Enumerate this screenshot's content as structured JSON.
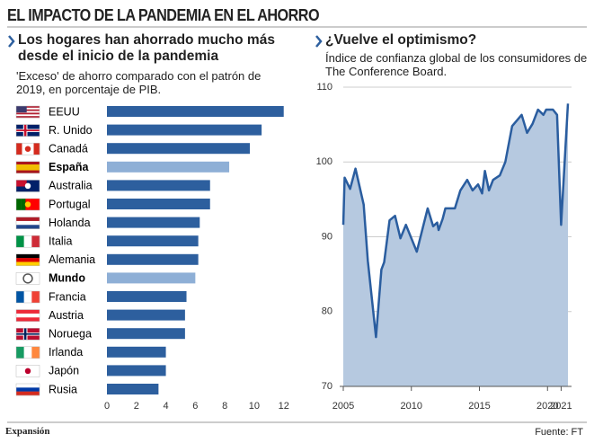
{
  "header": {
    "title": "EL IMPACTO DE LA PANDEMIA EN EL AHORRO"
  },
  "chart_data": [
    {
      "type": "bar",
      "orientation": "horizontal",
      "title": "Los hogares han ahorrado mucho más desde el inicio de la pandemia",
      "subtitle": "'Exceso' de ahorro comparado con el patrón de 2019, en porcentaje de PIB.",
      "categories": [
        "EEUU",
        "R. Unido",
        "Canadá",
        "España",
        "Australia",
        "Portugal",
        "Holanda",
        "Italia",
        "Alemania",
        "Mundo",
        "Francia",
        "Austria",
        "Noruega",
        "Irlanda",
        "Japón",
        "Rusia"
      ],
      "values": [
        12.0,
        10.5,
        9.7,
        8.3,
        7.0,
        7.0,
        6.3,
        6.2,
        6.2,
        6.0,
        5.4,
        5.3,
        5.3,
        4.0,
        4.0,
        3.5
      ],
      "color": "#2d5f9e",
      "highlight": [
        "España",
        "Mundo"
      ],
      "highlight_color": "#8eafd6",
      "xlim": [
        0,
        12.2
      ],
      "xticks": [
        0,
        2,
        4,
        6,
        8,
        10,
        12
      ]
    },
    {
      "type": "area",
      "title": "¿Vuelve el optimismo?",
      "subtitle": "Índice de confianza global de los consumidores de The Conference Board.",
      "x": [
        2005.0,
        2005.1,
        2005.5,
        2005.9,
        2006.5,
        2006.8,
        2007.4,
        2007.8,
        2008.0,
        2008.4,
        2008.8,
        2009.2,
        2009.6,
        2010.4,
        2011.2,
        2011.6,
        2011.9,
        2012.0,
        2012.3,
        2012.5,
        2013.2,
        2013.6,
        2014.1,
        2014.5,
        2014.9,
        2015.2,
        2015.4,
        2015.7,
        2016.0,
        2016.5,
        2016.9,
        2017.4,
        2018.1,
        2018.5,
        2018.9,
        2019.3,
        2019.7,
        2019.9,
        2020.4,
        2020.7,
        2021.0,
        2021.5
      ],
      "values": [
        91.6,
        97.9,
        96.4,
        99.1,
        94.3,
        86.8,
        76.6,
        85.6,
        86.6,
        92.2,
        92.8,
        89.8,
        91.6,
        88.0,
        93.8,
        91.4,
        91.9,
        90.9,
        92.4,
        93.8,
        93.8,
        96.2,
        97.6,
        96.2,
        97.0,
        95.8,
        98.8,
        96.2,
        97.6,
        98.2,
        100.0,
        104.8,
        106.3,
        103.9,
        105.1,
        107.0,
        106.3,
        107.0,
        107.0,
        106.3,
        91.6,
        107.8
      ],
      "color": "#2a5d9f",
      "fill": "#b6c9e0",
      "xlim": [
        2005,
        2021.5
      ],
      "ylim": [
        70,
        110
      ],
      "xticks": [
        2005,
        2010,
        2015,
        2020,
        2021
      ],
      "yticks": [
        70,
        80,
        90,
        100,
        110
      ],
      "grid": true
    }
  ],
  "footer": {
    "brand": "Expansión",
    "source": "Fuente: FT"
  }
}
